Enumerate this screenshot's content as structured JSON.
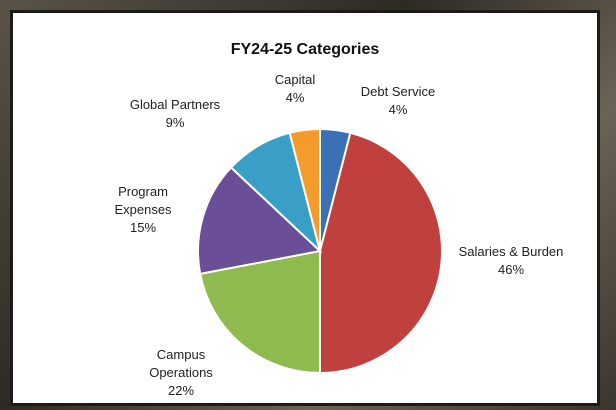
{
  "chart_data": {
    "type": "pie",
    "title": "FY24-25 Categories",
    "categories": [
      "Debt Service",
      "Salaries & Burden",
      "Campus Operations",
      "Program Expenses",
      "Global Partners",
      "Capital"
    ],
    "values": [
      4,
      46,
      22,
      15,
      9,
      4
    ],
    "value_labels": [
      "4%",
      "46%",
      "22%",
      "15%",
      "9%",
      "4%"
    ],
    "colors": [
      "#3b6fb6",
      "#c0403e",
      "#8fba4f",
      "#6a4e98",
      "#3a9fc6",
      "#f59b2c"
    ]
  }
}
